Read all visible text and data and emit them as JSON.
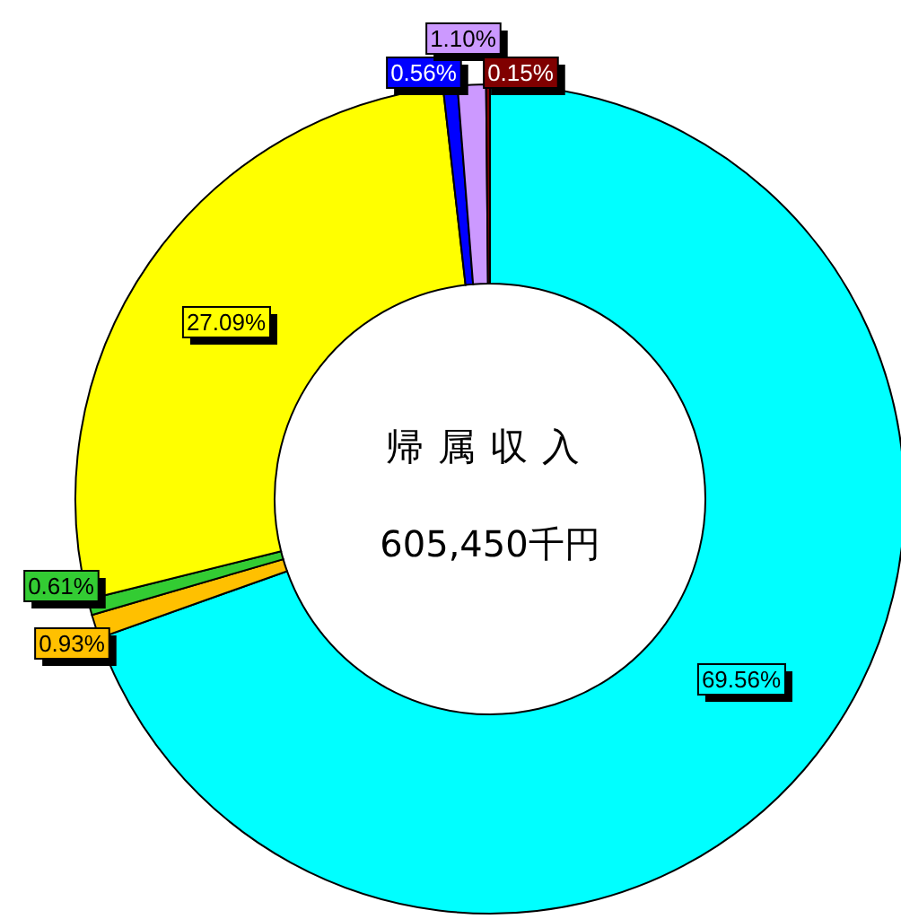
{
  "chart_data": {
    "type": "donut",
    "title": "帰属収入",
    "subtitle": "605,450千円",
    "categories": [
      null,
      null,
      null,
      null,
      null,
      null,
      null
    ],
    "values": [
      69.56,
      0.93,
      0.61,
      27.09,
      0.56,
      1.1,
      0.15
    ],
    "value_labels": [
      "69.56%",
      "0.93%",
      "0.61%",
      "27.09%",
      "0.56%",
      "1.10%",
      "0.15%"
    ],
    "colors": [
      "#00ffff",
      "#ffc000",
      "#33cc33",
      "#ffff00",
      "#0000ff",
      "#cc99ff",
      "#800000"
    ]
  }
}
